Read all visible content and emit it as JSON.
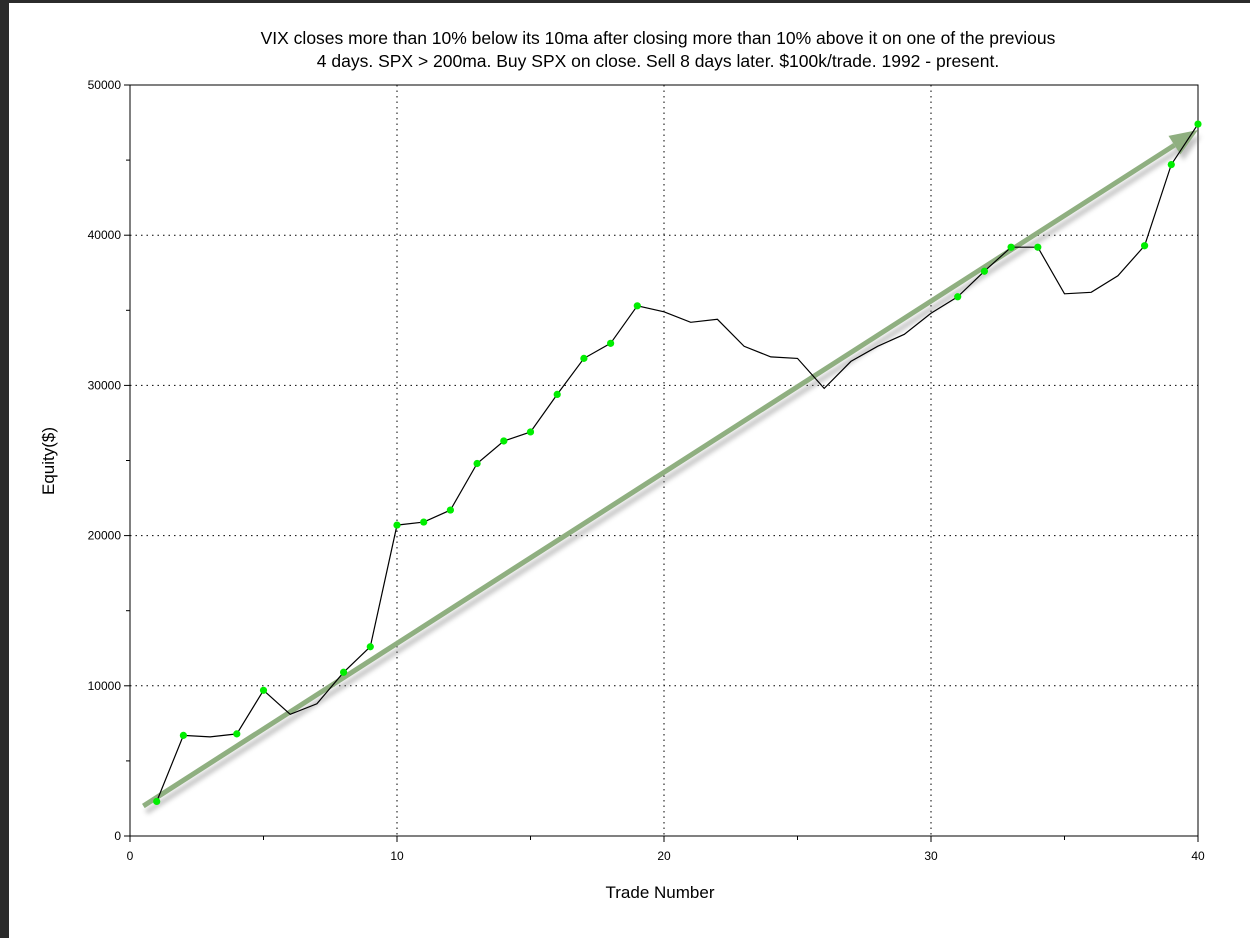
{
  "chart_data": {
    "type": "line",
    "title_lines": [
      "VIX closes more than 10% below its 10ma after closing more than 10% above it on one of the previous",
      "4 days. SPX > 200ma. Buy SPX on close. Sell 8 days later. $100k/trade. 1992 - present."
    ],
    "xlabel": "Trade Number",
    "ylabel": "Equity($)",
    "xlim": [
      0,
      40
    ],
    "ylim": [
      0,
      50000
    ],
    "x_ticks": [
      0,
      10,
      20,
      30,
      40
    ],
    "y_ticks": [
      0,
      10000,
      20000,
      30000,
      40000,
      50000
    ],
    "grid": "dotted",
    "series": [
      {
        "values": [
          [
            1,
            2300
          ],
          [
            2,
            6700
          ],
          [
            3,
            6600
          ],
          [
            4,
            6800
          ],
          [
            5,
            9700
          ],
          [
            6,
            8100
          ],
          [
            7,
            8800
          ],
          [
            8,
            10900
          ],
          [
            9,
            12600
          ],
          [
            10,
            20700
          ],
          [
            11,
            20900
          ],
          [
            12,
            21700
          ],
          [
            13,
            24800
          ],
          [
            14,
            26300
          ],
          [
            15,
            26900
          ],
          [
            16,
            29400
          ],
          [
            17,
            31800
          ],
          [
            18,
            32800
          ],
          [
            19,
            35300
          ],
          [
            20,
            34900
          ],
          [
            21,
            34200
          ],
          [
            22,
            34400
          ],
          [
            23,
            32600
          ],
          [
            24,
            31900
          ],
          [
            25,
            31800
          ],
          [
            26,
            29800
          ],
          [
            27,
            31600
          ],
          [
            28,
            32600
          ],
          [
            29,
            33400
          ],
          [
            30,
            34800
          ],
          [
            31,
            35900
          ],
          [
            32,
            37600
          ],
          [
            33,
            39200
          ],
          [
            34,
            39200
          ],
          [
            35,
            36100
          ],
          [
            36,
            36200
          ],
          [
            37,
            37300
          ],
          [
            38,
            39300
          ],
          [
            39,
            44700
          ],
          [
            40,
            47400
          ]
        ],
        "marked_points": [
          1,
          2,
          4,
          5,
          8,
          9,
          10,
          11,
          12,
          13,
          14,
          15,
          16,
          17,
          18,
          19,
          31,
          32,
          33,
          34,
          38,
          39,
          40
        ]
      }
    ],
    "annotation_arrow": {
      "from": [
        0.5,
        2000
      ],
      "to": [
        40,
        47000
      ]
    }
  },
  "colors": {
    "title": "#1c1c9e",
    "line": "#000000",
    "marker": "#00ee00",
    "arrow": "#8faf80",
    "grid": "#000000"
  }
}
